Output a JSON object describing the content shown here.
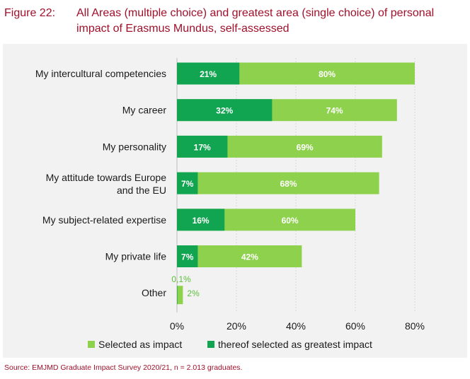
{
  "figure": {
    "label": "Figure 22:",
    "title": "All Areas (multiple choice) and greatest area (single choice) of personal impact of Erasmus Mundus, self-assessed"
  },
  "source": "Source: EMJMD Graduate Impact Survey 2020/21, n = 2.013 graduates.",
  "colors": {
    "selected": "#8ed14c",
    "greatest": "#12a551",
    "panel": "#f2f2f2",
    "caption": "#a0102a"
  },
  "chart_data": {
    "type": "bar",
    "orientation": "horizontal",
    "categories": [
      [
        "My intercultural competencies"
      ],
      [
        "My career"
      ],
      [
        "My personality"
      ],
      [
        "My attitude towards Europe",
        "and the EU"
      ],
      [
        "My subject-related expertise"
      ],
      [
        "My private life"
      ],
      [
        "Other"
      ]
    ],
    "series": [
      {
        "name": "Selected as impact",
        "values": [
          80,
          74,
          69,
          68,
          60,
          42,
          2
        ],
        "labels": [
          "80%",
          "74%",
          "69%",
          "68%",
          "60%",
          "42%",
          "2%"
        ]
      },
      {
        "name": "thereof selected as greatest impact",
        "values": [
          21,
          32,
          17,
          7,
          16,
          7,
          0.1
        ],
        "labels": [
          "21%",
          "32%",
          "17%",
          "7%",
          "16%",
          "7%",
          "0,1%"
        ]
      }
    ],
    "xlim": [
      0,
      80
    ],
    "xticks": [
      0,
      20,
      40,
      60,
      80
    ],
    "xtick_labels": [
      "0%",
      "20%",
      "40%",
      "60%",
      "80%"
    ],
    "grid": true,
    "legend_placement": "bottom"
  }
}
